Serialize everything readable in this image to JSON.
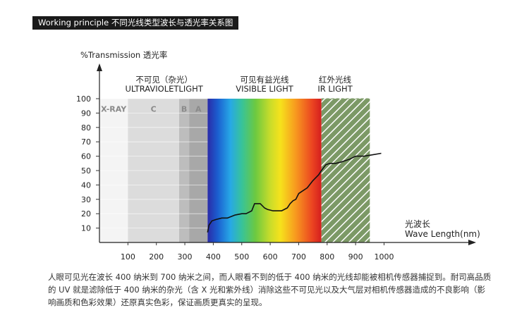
{
  "banner": {
    "title": "Working principle 不同光线类型波长与透光率关系图"
  },
  "chart_data": {
    "type": "line",
    "title": "",
    "ylabel": "%Transmission 透光率",
    "xlabel_cn": "光波长",
    "xlabel_en": "Wave Length(nm)",
    "xlim": [
      0,
      1000
    ],
    "ylim": [
      0,
      100
    ],
    "x_ticks": [
      100,
      200,
      300,
      400,
      500,
      600,
      700,
      800,
      900,
      1000
    ],
    "y_ticks": [
      10,
      20,
      30,
      40,
      50,
      60,
      70,
      80,
      90,
      100
    ],
    "grid": true,
    "regions": [
      {
        "label": "X-RAY",
        "from": 0,
        "to": 100,
        "color": "#f4f4f4"
      },
      {
        "label": "C",
        "from": 100,
        "to": 280,
        "color": "#dcdcdc"
      },
      {
        "label": "B",
        "from": 280,
        "to": 315,
        "color": "#bdbdbd"
      },
      {
        "label": "A",
        "from": 315,
        "to": 380,
        "color": "#a8a8a8"
      }
    ],
    "zones": [
      {
        "cn": "不可见（杂光）",
        "en": "ULTRAVIOLETLIGHT"
      },
      {
        "cn": "可见有益光线",
        "en": "VISIBLE LIGHT"
      },
      {
        "cn": "红外光线",
        "en": "IR LIGHT"
      }
    ],
    "visible_range": [
      380,
      780
    ],
    "ir_range": [
      780,
      950
    ],
    "series": [
      {
        "x": [
          380,
          385,
          395,
          410,
          430,
          450,
          475,
          500,
          515,
          535,
          545,
          555,
          565,
          580,
          590,
          610,
          640,
          660,
          670,
          680,
          690,
          700,
          715,
          730,
          750,
          770,
          780,
          795,
          810,
          830,
          850,
          880,
          900,
          930,
          960,
          990
        ],
        "y": [
          7,
          12,
          15,
          16,
          17,
          17,
          19,
          20,
          20,
          22,
          27,
          27,
          27,
          24,
          23,
          22,
          22,
          24,
          27,
          29,
          30,
          34,
          36,
          38,
          43,
          47,
          50,
          54,
          55,
          55,
          56,
          58,
          60,
          60,
          61,
          62
        ]
      }
    ]
  },
  "caption": {
    "text": "人眼可见光在波长 400 纳米到 700 纳米之间，而人眼看不到的低于 400 纳米的光线却能被相机传感器捕捉到。耐司高品质的 UV 就是滤除低于 400 纳米的杂光（含 X 光和紫外线）消除这些不可见光以及大气层对相机传感器造成的不良影响（影响画质和色彩效果）还原真实色彩，保证画质更真实的呈现。"
  }
}
